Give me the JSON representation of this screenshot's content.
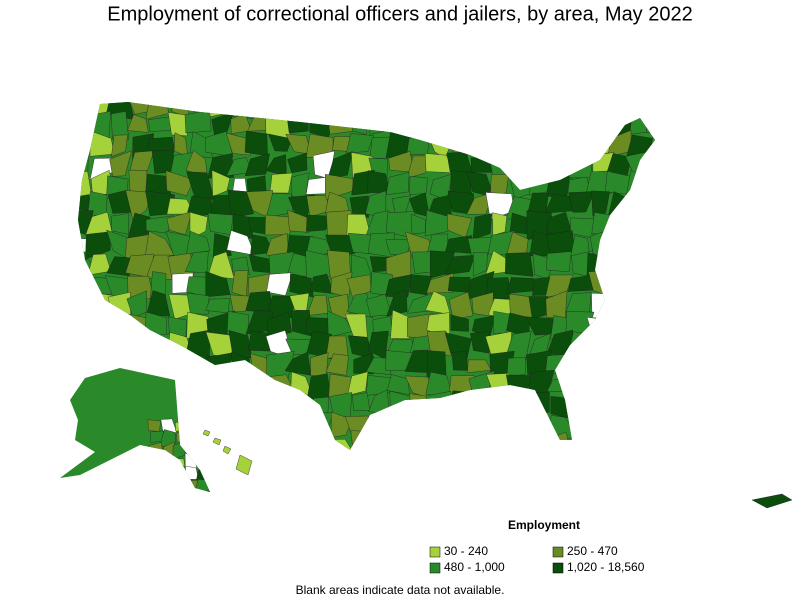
{
  "title": "Employment of correctional officers and jailers, by area, May 2022",
  "legend": {
    "title": "Employment",
    "items": [
      {
        "label": "30 - 240",
        "color": "#a5d13a"
      },
      {
        "label": "250 - 470",
        "color": "#6b8b23"
      },
      {
        "label": "480 - 1,000",
        "color": "#2a8a2a"
      },
      {
        "label": "1,020 - 18,560",
        "color": "#0b4d0b"
      }
    ]
  },
  "note": "Blank areas indicate data not available."
}
